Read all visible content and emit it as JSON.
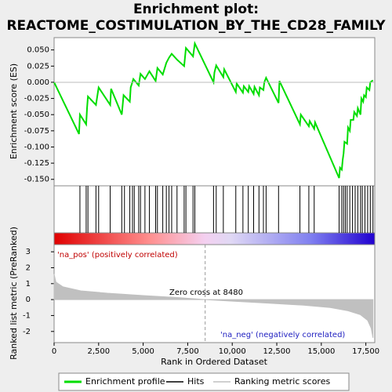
{
  "chart_data": {
    "type": "gsea",
    "title": [
      "Enrichment plot:",
      "REACTOME_COSTIMULATION_BY_THE_CD28_FAMILY"
    ],
    "xlabel": "Rank in Ordered Dataset",
    "ylabel": "Enrichment score (ES)",
    "y2label": "Ranked list metric (PreRanked)",
    "xlim": [
      0,
      18000
    ],
    "xticks": [
      0,
      {
        "value": 2500,
        "label": "2,500"
      },
      {
        "value": 5000,
        "label": "5,000"
      },
      {
        "value": 7500,
        "label": "7,500"
      },
      {
        "value": 10000,
        "label": "10,000"
      },
      {
        "value": 12500,
        "label": "12,500"
      },
      {
        "value": 15000,
        "label": "15,000"
      },
      {
        "value": 17500,
        "label": "17,500"
      }
    ],
    "ylim": [
      -0.16,
      0.069
    ],
    "yticks": [
      {
        "value": -0.15,
        "label": "-0.150"
      },
      {
        "value": -0.125,
        "label": "-0.125"
      },
      {
        "value": -0.1,
        "label": "-0.100"
      },
      {
        "value": -0.075,
        "label": "-0.075"
      },
      {
        "value": -0.05,
        "label": "-0.050"
      },
      {
        "value": -0.025,
        "label": "-0.025"
      },
      {
        "value": 0,
        "label": "0.000"
      },
      {
        "value": 0.025,
        "label": "0.025"
      },
      {
        "value": 0.05,
        "label": "0.050"
      }
    ],
    "y2lim": [
      -2.7,
      3.45
    ],
    "y2ticks": [
      -2,
      -1,
      0,
      1,
      2,
      3
    ],
    "series": [
      {
        "name": "Enrichment profile",
        "color": "#00dd00",
        "x": [
          0,
          1400,
          1450,
          1800,
          1850,
          1900,
          2350,
          2500,
          3150,
          3200,
          3800,
          3900,
          4250,
          4300,
          4450,
          4750,
          4850,
          5100,
          5350,
          5700,
          5800,
          6100,
          6300,
          6450,
          6600,
          6900,
          7300,
          7400,
          7800,
          7900,
          8950,
          9000,
          9100,
          9500,
          9550,
          10200,
          10250,
          10600,
          10650,
          10900,
          10950,
          11200,
          11250,
          11500,
          11550,
          11750,
          11800,
          11900,
          12600,
          12650,
          13800,
          13850,
          14300,
          14350,
          14600,
          14650,
          16000,
          16050,
          16150,
          16200,
          16250,
          16300,
          16450,
          16500,
          16600,
          16650,
          16800,
          16850,
          17000,
          17050,
          17200,
          17250,
          17350,
          17400,
          17500,
          17550,
          17700,
          17750,
          17900
        ],
        "values": [
          0,
          -0.08,
          -0.05,
          -0.065,
          -0.04,
          -0.022,
          -0.035,
          -0.008,
          -0.035,
          -0.01,
          -0.05,
          -0.02,
          -0.03,
          -0.008,
          0.005,
          -0.005,
          0.013,
          0.005,
          0.017,
          0.002,
          0.022,
          0.012,
          0.03,
          0.038,
          0.044,
          0.035,
          0.025,
          0.053,
          0.04,
          0.06,
          0.0,
          0.015,
          0.026,
          0.008,
          0.02,
          -0.015,
          -0.002,
          -0.016,
          -0.006,
          -0.015,
          -0.006,
          -0.018,
          -0.007,
          -0.02,
          -0.008,
          -0.012,
          0.0,
          0.007,
          -0.032,
          0.002,
          -0.065,
          -0.05,
          -0.068,
          -0.06,
          -0.072,
          -0.062,
          -0.148,
          -0.132,
          -0.135,
          -0.12,
          -0.11,
          -0.092,
          -0.095,
          -0.07,
          -0.075,
          -0.058,
          -0.058,
          -0.046,
          -0.052,
          -0.04,
          -0.05,
          -0.025,
          -0.03,
          -0.02,
          -0.023,
          -0.008,
          -0.012,
          0.0,
          0.003
        ]
      },
      {
        "name": "Hits",
        "color": "#000000",
        "x": [
          1450,
          1800,
          1900,
          2350,
          2500,
          3150,
          3800,
          3950,
          4250,
          4400,
          4500,
          4750,
          4850,
          5100,
          5350,
          5700,
          5800,
          6100,
          6300,
          6450,
          6600,
          6900,
          7300,
          7400,
          7800,
          7900,
          8950,
          9100,
          9500,
          10200,
          10600,
          10900,
          11200,
          11500,
          11750,
          11900,
          12600,
          13800,
          14300,
          14600,
          16000,
          16150,
          16250,
          16350,
          16450,
          16600,
          16750,
          16900,
          17050,
          17200,
          17300,
          17450,
          17600,
          17750,
          17900
        ]
      },
      {
        "name": "Ranking metric scores",
        "color": "#c0c0c0",
        "axis": "y2",
        "x": [
          0,
          100,
          500,
          1500,
          3000,
          5000,
          7000,
          8480,
          10000,
          12000,
          14000,
          15500,
          16500,
          17200,
          17600,
          17800,
          17900
        ],
        "values": [
          1.6,
          1.1,
          0.8,
          0.55,
          0.4,
          0.25,
          0.12,
          0,
          -0.1,
          -0.22,
          -0.35,
          -0.5,
          -0.7,
          -0.95,
          -1.3,
          -1.8,
          -2.4
        ]
      }
    ],
    "zero_cross": 8480,
    "annotations": [
      "Zero cross at 8480",
      "'na_pos' (positively correlated)",
      "'na_neg' (negatively correlated)"
    ]
  }
}
